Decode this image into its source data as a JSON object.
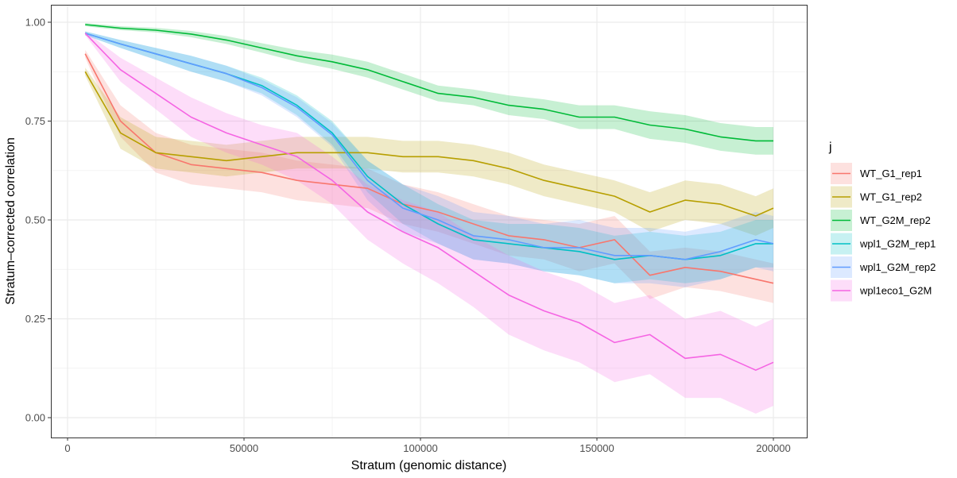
{
  "chart_data": {
    "type": "line",
    "title": "",
    "xlabel": "Stratum (genomic distance)",
    "ylabel": "Stratum–corrected correlation",
    "xlim": [
      -5000,
      210000
    ],
    "ylim": [
      -0.05,
      1.045
    ],
    "x_ticks": [
      0,
      50000,
      100000,
      150000,
      200000
    ],
    "x_tick_labels": [
      "0",
      "50000",
      "100000",
      "150000",
      "200000"
    ],
    "y_ticks": [
      0.0,
      0.25,
      0.5,
      0.75,
      1.0
    ],
    "y_tick_labels": [
      "0.00",
      "0.25",
      "0.50",
      "0.75",
      "1.00"
    ],
    "grid": true,
    "legend": {
      "title": "j",
      "position": "right"
    },
    "x": [
      5000,
      15000,
      25000,
      35000,
      45000,
      55000,
      65000,
      75000,
      85000,
      95000,
      105000,
      115000,
      125000,
      135000,
      145000,
      155000,
      165000,
      175000,
      185000,
      195000,
      200000
    ],
    "series": [
      {
        "name": "WT_G1_rep1",
        "color": "#F8766D",
        "values": [
          0.92,
          0.75,
          0.67,
          0.64,
          0.63,
          0.62,
          0.6,
          0.59,
          0.58,
          0.54,
          0.52,
          0.49,
          0.46,
          0.45,
          0.43,
          0.45,
          0.36,
          0.38,
          0.37,
          0.35,
          0.34
        ],
        "ci": [
          0.01,
          0.04,
          0.05,
          0.05,
          0.05,
          0.05,
          0.05,
          0.05,
          0.05,
          0.05,
          0.05,
          0.05,
          0.05,
          0.05,
          0.06,
          0.06,
          0.06,
          0.05,
          0.05,
          0.05,
          0.05
        ]
      },
      {
        "name": "WT_G1_rep2",
        "color": "#B79F00",
        "values": [
          0.875,
          0.72,
          0.67,
          0.66,
          0.65,
          0.66,
          0.67,
          0.67,
          0.67,
          0.66,
          0.66,
          0.65,
          0.63,
          0.6,
          0.58,
          0.56,
          0.52,
          0.55,
          0.54,
          0.51,
          0.53
        ],
        "ci": [
          0.01,
          0.04,
          0.04,
          0.04,
          0.04,
          0.04,
          0.04,
          0.04,
          0.04,
          0.04,
          0.04,
          0.04,
          0.04,
          0.04,
          0.04,
          0.04,
          0.05,
          0.05,
          0.05,
          0.05,
          0.05
        ]
      },
      {
        "name": "WT_G2M_rep2",
        "color": "#00BA38",
        "values": [
          0.994,
          0.985,
          0.98,
          0.97,
          0.955,
          0.935,
          0.915,
          0.9,
          0.88,
          0.85,
          0.82,
          0.81,
          0.79,
          0.78,
          0.76,
          0.76,
          0.74,
          0.73,
          0.71,
          0.7,
          0.7
        ],
        "ci": [
          0.004,
          0.005,
          0.006,
          0.008,
          0.01,
          0.012,
          0.015,
          0.018,
          0.02,
          0.02,
          0.02,
          0.02,
          0.025,
          0.025,
          0.03,
          0.03,
          0.035,
          0.035,
          0.035,
          0.035,
          0.035
        ]
      },
      {
        "name": "wpl1_G2M_rep1",
        "color": "#00BFC4",
        "values": [
          0.972,
          0.945,
          0.92,
          0.895,
          0.87,
          0.84,
          0.79,
          0.72,
          0.61,
          0.54,
          0.49,
          0.45,
          0.44,
          0.43,
          0.42,
          0.4,
          0.41,
          0.4,
          0.41,
          0.44,
          0.44
        ],
        "ci": [
          0.005,
          0.01,
          0.015,
          0.02,
          0.02,
          0.02,
          0.025,
          0.03,
          0.04,
          0.05,
          0.05,
          0.05,
          0.05,
          0.06,
          0.06,
          0.06,
          0.06,
          0.06,
          0.06,
          0.06,
          0.06
        ]
      },
      {
        "name": "wpl1_G2M_rep2",
        "color": "#619CFF",
        "values": [
          0.972,
          0.945,
          0.92,
          0.895,
          0.87,
          0.835,
          0.785,
          0.715,
          0.6,
          0.53,
          0.5,
          0.46,
          0.45,
          0.43,
          0.43,
          0.41,
          0.41,
          0.4,
          0.42,
          0.45,
          0.44
        ],
        "ci": [
          0.005,
          0.01,
          0.015,
          0.02,
          0.02,
          0.02,
          0.025,
          0.03,
          0.05,
          0.06,
          0.06,
          0.06,
          0.06,
          0.06,
          0.07,
          0.07,
          0.07,
          0.07,
          0.07,
          0.07,
          0.07
        ]
      },
      {
        "name": "wpl1eco1_G2M",
        "color": "#F564E3",
        "values": [
          0.972,
          0.88,
          0.82,
          0.76,
          0.72,
          0.69,
          0.66,
          0.6,
          0.52,
          0.47,
          0.43,
          0.37,
          0.31,
          0.27,
          0.24,
          0.19,
          0.21,
          0.15,
          0.16,
          0.12,
          0.14
        ],
        "ci": [
          0.005,
          0.03,
          0.04,
          0.05,
          0.05,
          0.05,
          0.06,
          0.06,
          0.07,
          0.08,
          0.09,
          0.09,
          0.1,
          0.1,
          0.1,
          0.1,
          0.1,
          0.1,
          0.11,
          0.11,
          0.11
        ]
      }
    ]
  }
}
